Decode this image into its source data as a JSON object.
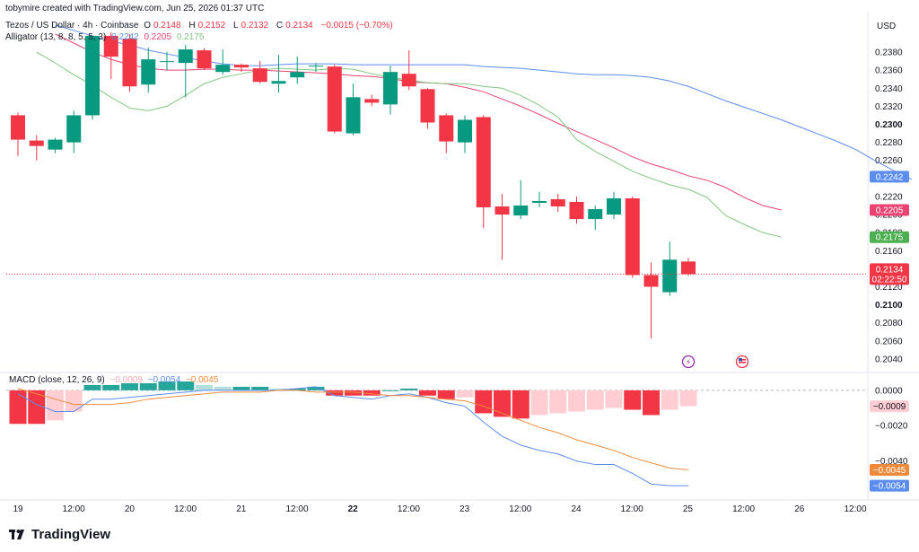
{
  "header": {
    "creator": "tobymire created with TradingView.com, Jun 25, 2026 01:37 UTC",
    "symbol": "Tezos / US Dollar · 4h · Coinbase",
    "ohlc": {
      "o_label": "O",
      "o": "0.2148",
      "h_label": "H",
      "h": "0.2152",
      "l_label": "L",
      "l": "0.2132",
      "c_label": "C",
      "c": "0.2134",
      "chg": "−0.0015 (−0.70%)"
    },
    "alligator_label": "Alligator (13, 8, 8, 5, 5, 3)",
    "alligator_values": [
      "0.2242",
      "0.2205",
      "0.2175"
    ],
    "macd_label": "MACD (close, 12, 26, 9)",
    "macd_values": [
      "−0.0009",
      "−0.0054",
      "−0.0045"
    ],
    "currency": "USD"
  },
  "colors": {
    "up": "#089981",
    "down": "#f23645",
    "jaw": "#5b8def",
    "teeth": "#e84371",
    "lips": "#7fc77f",
    "macd_line": "#5b8def",
    "signal_line": "#f08a3b",
    "hist_up_strong": "#26a69a",
    "hist_up_weak": "#b2dfdb",
    "hist_down_strong": "#f23645",
    "hist_down_weak": "#ffcdd2"
  },
  "chart_data": {
    "type": "candlestick",
    "price_axis": {
      "ticks": [
        "0.2380",
        "0.2360",
        "0.2340",
        "0.2320",
        "0.2300",
        "0.2280",
        "0.2260",
        "0.2240",
        "0.2220",
        "0.2200",
        "0.2180",
        "0.2160",
        "0.2140",
        "0.2120",
        "0.2100",
        "0.2080",
        "0.2060",
        "0.2040"
      ],
      "bold_ticks": [
        "0.2300",
        "0.2100"
      ],
      "range": [
        0.203,
        0.239
      ]
    },
    "time_axis": {
      "labels": [
        "19",
        "12:00",
        "20",
        "12:00",
        "21",
        "12:00",
        "22",
        "12:00",
        "23",
        "12:00",
        "24",
        "12:00",
        "25",
        "12:00",
        "26",
        "12:00"
      ],
      "bold_labels": [
        "22"
      ]
    },
    "candles": [
      {
        "o": 0.231,
        "h": 0.2313,
        "l": 0.2265,
        "c": 0.2283
      },
      {
        "o": 0.2282,
        "h": 0.2288,
        "l": 0.226,
        "c": 0.2276
      },
      {
        "o": 0.2272,
        "h": 0.2285,
        "l": 0.2268,
        "c": 0.2283
      },
      {
        "o": 0.228,
        "h": 0.2315,
        "l": 0.2268,
        "c": 0.231
      },
      {
        "o": 0.231,
        "h": 0.2398,
        "l": 0.2305,
        "c": 0.2398
      },
      {
        "o": 0.2398,
        "h": 0.2402,
        "l": 0.235,
        "c": 0.2375
      },
      {
        "o": 0.2395,
        "h": 0.24,
        "l": 0.2336,
        "c": 0.2342
      },
      {
        "o": 0.2344,
        "h": 0.2385,
        "l": 0.2335,
        "c": 0.2372
      },
      {
        "o": 0.237,
        "h": 0.238,
        "l": 0.236,
        "c": 0.237
      },
      {
        "o": 0.2368,
        "h": 0.2388,
        "l": 0.233,
        "c": 0.2383
      },
      {
        "o": 0.2382,
        "h": 0.2384,
        "l": 0.236,
        "c": 0.2362
      },
      {
        "o": 0.2358,
        "h": 0.2383,
        "l": 0.2355,
        "c": 0.2366
      },
      {
        "o": 0.2366,
        "h": 0.2367,
        "l": 0.2358,
        "c": 0.2363
      },
      {
        "o": 0.2362,
        "h": 0.237,
        "l": 0.2345,
        "c": 0.2347
      },
      {
        "o": 0.2345,
        "h": 0.2377,
        "l": 0.2335,
        "c": 0.2348
      },
      {
        "o": 0.2352,
        "h": 0.2375,
        "l": 0.2345,
        "c": 0.2358
      },
      {
        "o": 0.2365,
        "h": 0.2368,
        "l": 0.2358,
        "c": 0.2365
      },
      {
        "o": 0.2364,
        "h": 0.2366,
        "l": 0.229,
        "c": 0.2292
      },
      {
        "o": 0.229,
        "h": 0.2345,
        "l": 0.2288,
        "c": 0.233
      },
      {
        "o": 0.2328,
        "h": 0.2333,
        "l": 0.232,
        "c": 0.2324
      },
      {
        "o": 0.2322,
        "h": 0.2365,
        "l": 0.2311,
        "c": 0.2358
      },
      {
        "o": 0.2356,
        "h": 0.2382,
        "l": 0.2338,
        "c": 0.2342
      },
      {
        "o": 0.2339,
        "h": 0.234,
        "l": 0.2295,
        "c": 0.2302
      },
      {
        "o": 0.231,
        "h": 0.2312,
        "l": 0.2268,
        "c": 0.2281
      },
      {
        "o": 0.228,
        "h": 0.231,
        "l": 0.2268,
        "c": 0.2305
      },
      {
        "o": 0.2308,
        "h": 0.231,
        "l": 0.2185,
        "c": 0.2208
      },
      {
        "o": 0.2209,
        "h": 0.2223,
        "l": 0.215,
        "c": 0.22
      },
      {
        "o": 0.2199,
        "h": 0.2238,
        "l": 0.2195,
        "c": 0.221
      },
      {
        "o": 0.2213,
        "h": 0.2225,
        "l": 0.2208,
        "c": 0.2215
      },
      {
        "o": 0.2217,
        "h": 0.2223,
        "l": 0.2203,
        "c": 0.2209
      },
      {
        "o": 0.2214,
        "h": 0.222,
        "l": 0.219,
        "c": 0.2195
      },
      {
        "o": 0.2195,
        "h": 0.221,
        "l": 0.2183,
        "c": 0.2206
      },
      {
        "o": 0.22,
        "h": 0.2225,
        "l": 0.2195,
        "c": 0.2218
      },
      {
        "o": 0.2218,
        "h": 0.222,
        "l": 0.213,
        "c": 0.2133
      },
      {
        "o": 0.2133,
        "h": 0.2147,
        "l": 0.2063,
        "c": 0.212
      },
      {
        "o": 0.2114,
        "h": 0.217,
        "l": 0.211,
        "c": 0.215
      },
      {
        "o": 0.2148,
        "h": 0.2152,
        "l": 0.2132,
        "c": 0.2134
      }
    ],
    "alligator_jaw": [
      0.241,
      0.2404,
      0.2398,
      0.2392,
      0.2388,
      0.2382,
      0.2378,
      0.2374,
      0.237,
      0.2367,
      0.2365,
      0.2365,
      0.2366,
      0.2367,
      0.2367,
      0.2367,
      0.2366,
      0.2366,
      0.2366,
      0.2366,
      0.2366,
      0.2366,
      0.2366,
      0.2364,
      0.2363,
      0.2362,
      0.236,
      0.2358,
      0.2356,
      0.2355,
      0.2355,
      0.2354,
      0.2352,
      0.2348,
      0.2342,
      0.2334,
      0.2326,
      0.2319,
      0.2312,
      0.2305,
      0.2297,
      0.2289,
      0.2281,
      0.2272,
      0.226,
      0.2249,
      0.2239
    ],
    "alligator_teeth": [
      0.24,
      0.239,
      0.238,
      0.2372,
      0.2366,
      0.2362,
      0.236,
      0.236,
      0.2361,
      0.2361,
      0.236,
      0.236,
      0.2359,
      0.2358,
      0.2357,
      0.2356,
      0.2354,
      0.2353,
      0.2351,
      0.2347,
      0.2346,
      0.2345,
      0.2341,
      0.2336,
      0.2328,
      0.232,
      0.2311,
      0.2301,
      0.2292,
      0.2283,
      0.2274,
      0.2264,
      0.2256,
      0.225,
      0.2243,
      0.2238,
      0.223,
      0.2219,
      0.221,
      0.2205
    ],
    "alligator_lips": [
      0.238,
      0.2368,
      0.2355,
      0.2343,
      0.233,
      0.2318,
      0.2315,
      0.232,
      0.2332,
      0.2345,
      0.2352,
      0.2356,
      0.236,
      0.2362,
      0.2361,
      0.236,
      0.2362,
      0.2361,
      0.2356,
      0.2352,
      0.2349,
      0.2346,
      0.2345,
      0.2345,
      0.2342,
      0.234,
      0.2332,
      0.2321,
      0.2308,
      0.2283,
      0.227,
      0.2259,
      0.2248,
      0.224,
      0.2233,
      0.2228,
      0.2219,
      0.2199,
      0.2189,
      0.218,
      0.2175
    ],
    "macd_axis": {
      "ticks": [
        "0.0000",
        "-0.0020",
        "-0.0040"
      ],
      "range": [
        -0.006,
        0.0005
      ]
    },
    "macd_hist": [
      -0.0019,
      -0.0019,
      -0.0017,
      -0.0012,
      0.0003,
      0.0003,
      0.0004,
      0.0004,
      0.0005,
      0.0005,
      0.0003,
      0.0002,
      0.0002,
      0.0002,
      0.0001,
      0.0001,
      0.0002,
      -0.0003,
      -0.0003,
      -0.0003,
      0.0,
      0.0001,
      -0.0003,
      -0.0005,
      -0.0004,
      -0.0013,
      -0.0015,
      -0.0016,
      -0.0014,
      -0.0013,
      -0.0012,
      -0.0011,
      -0.001,
      -0.0011,
      -0.0014,
      -0.0011,
      -0.0009
    ],
    "macd_line": [
      -0.0002,
      -0.0008,
      -0.0012,
      -0.0012,
      -0.0005,
      -0.0005,
      -0.0004,
      -0.0003,
      -0.0002,
      -0.0001,
      -0.0,
      -0.0,
      0.0,
      0.0,
      0.0,
      0.0001,
      0.0002,
      -0.0003,
      -0.0004,
      -0.0005,
      -0.0003,
      -0.0002,
      -0.0004,
      -0.0007,
      -0.0009,
      -0.0018,
      -0.0026,
      -0.0031,
      -0.0034,
      -0.0036,
      -0.004,
      -0.0042,
      -0.0042,
      -0.0047,
      -0.0053,
      -0.0054,
      -0.0054
    ],
    "signal_line": [
      0.0001,
      -0.0002,
      -0.0005,
      -0.0008,
      -0.0008,
      -0.0008,
      -0.0007,
      -0.0005,
      -0.0004,
      -0.0003,
      -0.0002,
      -0.0001,
      -0.0001,
      -0.0001,
      -0.0,
      -0.0,
      -0.0001,
      -0.0001,
      -0.0001,
      -0.0002,
      -0.0003,
      -0.0003,
      -0.0004,
      -0.0005,
      -0.0006,
      -0.0009,
      -0.0013,
      -0.0017,
      -0.0021,
      -0.0024,
      -0.0028,
      -0.0031,
      -0.0034,
      -0.0038,
      -0.0041,
      -0.0044,
      -0.0045
    ],
    "last_price": {
      "value": "0.2134",
      "countdown": "02:22:50"
    }
  },
  "footer": {
    "brand": "TradingView"
  }
}
